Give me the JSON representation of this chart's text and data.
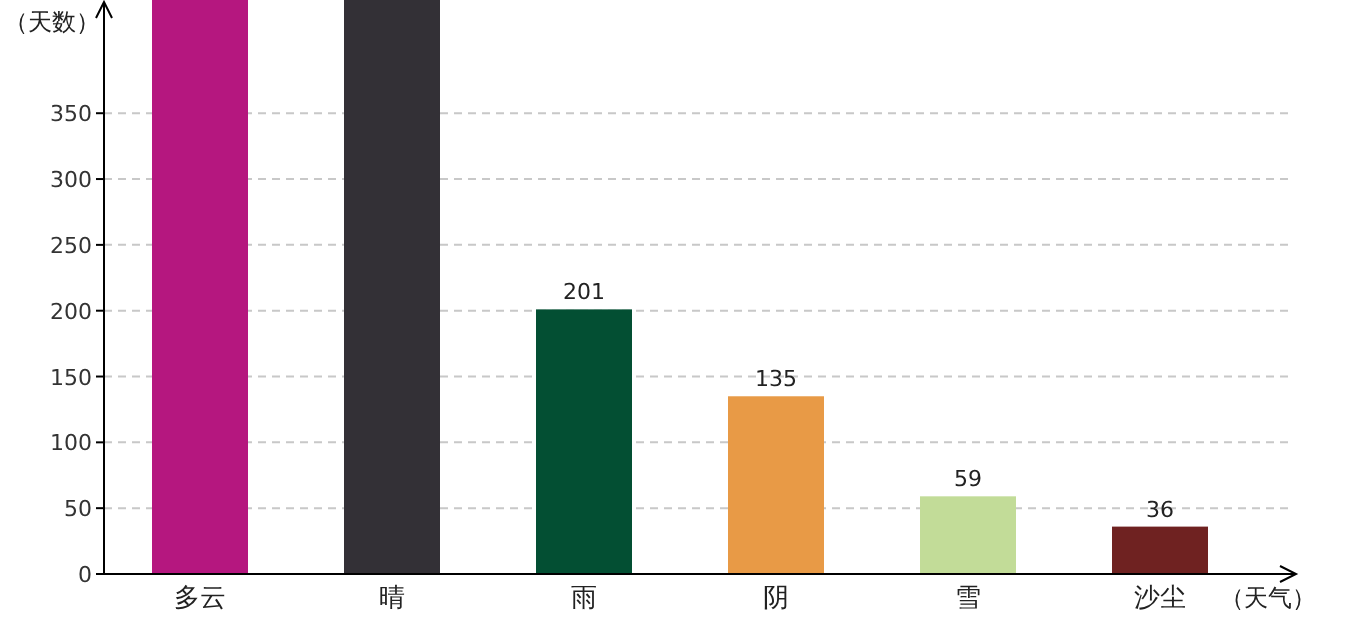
{
  "chart_data": {
    "type": "bar",
    "ylabel": "（天数）",
    "xlabel": "（天气）",
    "categories": [
      "多云",
      "晴",
      "雨",
      "阴",
      "雪",
      "沙尘"
    ],
    "values": [
      436,
      436,
      201,
      135,
      59,
      36
    ],
    "value_labels": [
      null,
      null,
      "201",
      "135",
      "59",
      "36"
    ],
    "colors": [
      "#b5177f",
      "#333036",
      "#034f33",
      "#e89a46",
      "#c2dc98",
      "#6f2221"
    ],
    "ylim": [
      0,
      436
    ],
    "yticks": [
      0,
      50,
      100,
      150,
      200,
      250,
      300,
      350
    ],
    "grid": "y"
  }
}
